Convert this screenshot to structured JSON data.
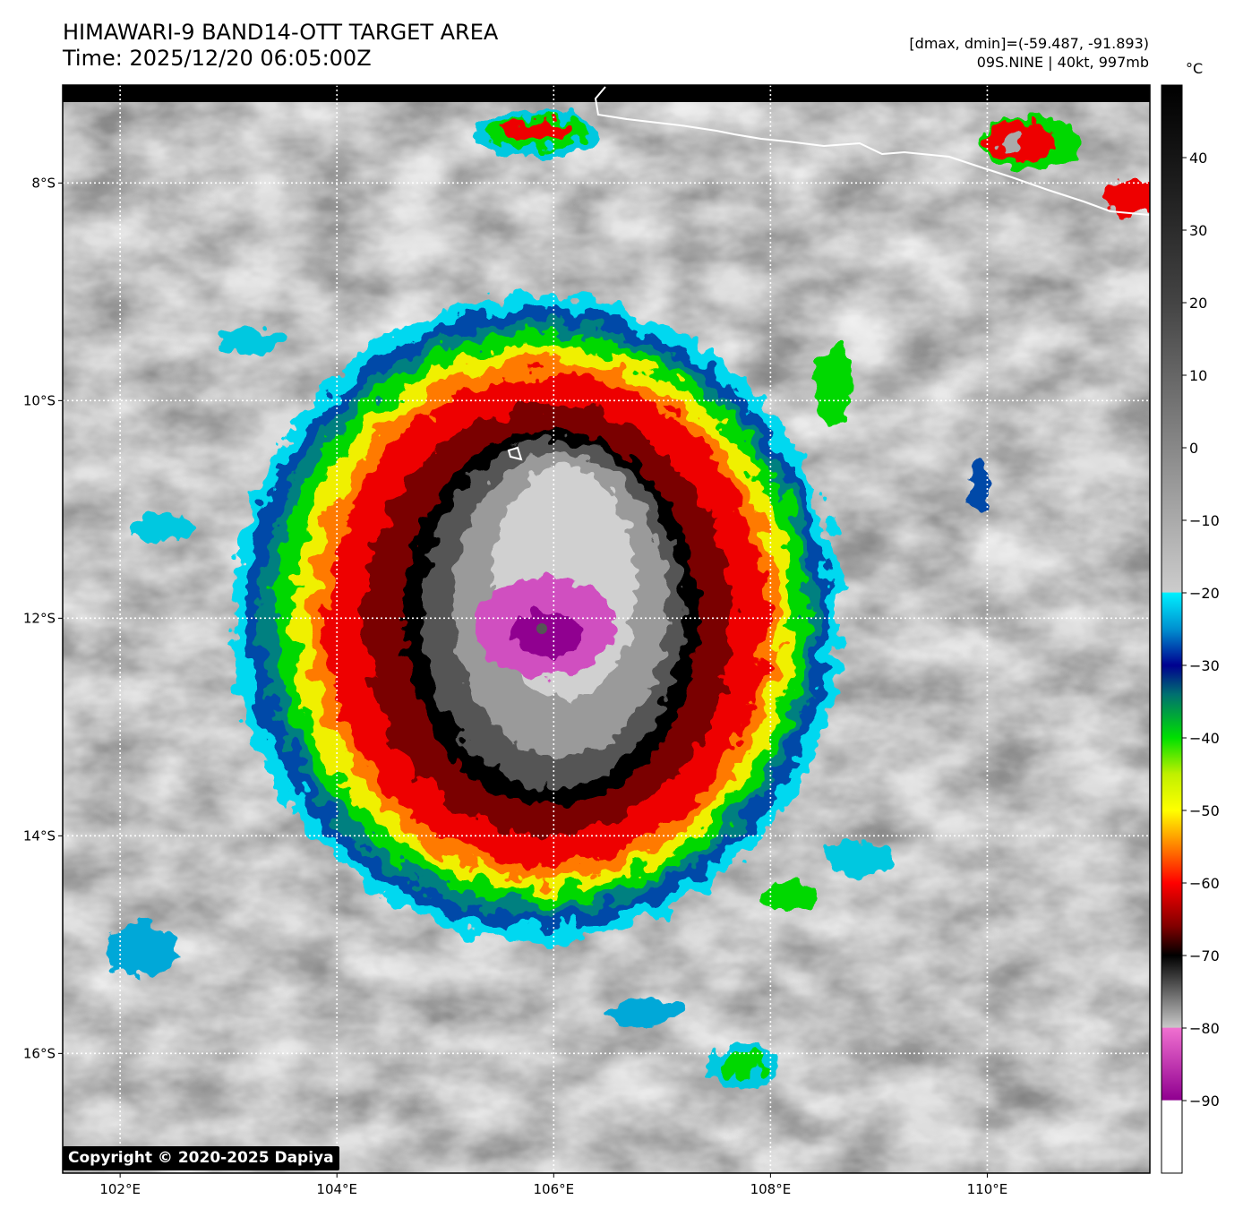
{
  "header": {
    "title_line1": "HIMAWARI-9 BAND14-OTT TARGET AREA",
    "title_line2": "Time: 2025/12/20 06:05:00Z",
    "info_line1": "[dmax, dmin]=(-59.487, -91.893)",
    "info_line2": "09S.NINE | 40kt, 997mb"
  },
  "map": {
    "lon_labels": [
      "102°E",
      "104°E",
      "106°E",
      "108°E",
      "110°E"
    ],
    "lat_labels": [
      "8°S",
      "10°S",
      "12°S",
      "14°S",
      "16°S"
    ],
    "lon_values": [
      102,
      104,
      106,
      108,
      110
    ],
    "lat_values": [
      -8,
      -10,
      -12,
      -14,
      -16
    ],
    "lon_range": [
      101.47,
      111.5
    ],
    "lat_range": [
      -17.1,
      -7.1
    ],
    "storm_center": {
      "lon": 105.9,
      "lat": -12.1
    },
    "coastline_color": "#ffffff"
  },
  "colorbar": {
    "unit": "°C",
    "tick_labels": [
      "40",
      "30",
      "20",
      "10",
      "0",
      "−10",
      "−20",
      "−30",
      "−40",
      "−50",
      "−60",
      "−70",
      "−80",
      "−90"
    ],
    "tick_values": [
      40,
      30,
      20,
      10,
      0,
      -10,
      -20,
      -30,
      -40,
      -50,
      -60,
      -70,
      -80,
      -90
    ],
    "range": [
      -100,
      50
    ],
    "stops": [
      {
        "t": 50,
        "color": "#000000"
      },
      {
        "t": 35,
        "color": "#202020"
      },
      {
        "t": 20,
        "color": "#444444"
      },
      {
        "t": 0,
        "color": "#888888"
      },
      {
        "t": -19.9,
        "color": "#cccccc"
      },
      {
        "t": -20,
        "color": "#00f0ff"
      },
      {
        "t": -25,
        "color": "#0090d0"
      },
      {
        "t": -30,
        "color": "#000090"
      },
      {
        "t": -34,
        "color": "#007070"
      },
      {
        "t": -40,
        "color": "#00e000"
      },
      {
        "t": -45,
        "color": "#c0f000"
      },
      {
        "t": -50,
        "color": "#ffff00"
      },
      {
        "t": -55,
        "color": "#ff8000"
      },
      {
        "t": -60,
        "color": "#ff0000"
      },
      {
        "t": -66,
        "color": "#800000"
      },
      {
        "t": -70,
        "color": "#000000"
      },
      {
        "t": -79.9,
        "color": "#c8c8c8"
      },
      {
        "t": -80,
        "color": "#f070d0"
      },
      {
        "t": -89.9,
        "color": "#900090"
      },
      {
        "t": -90,
        "color": "#ffffff"
      },
      {
        "t": -100,
        "color": "#ffffff"
      }
    ]
  },
  "copyright": "Copyright © 2020-2025 Dapiya"
}
